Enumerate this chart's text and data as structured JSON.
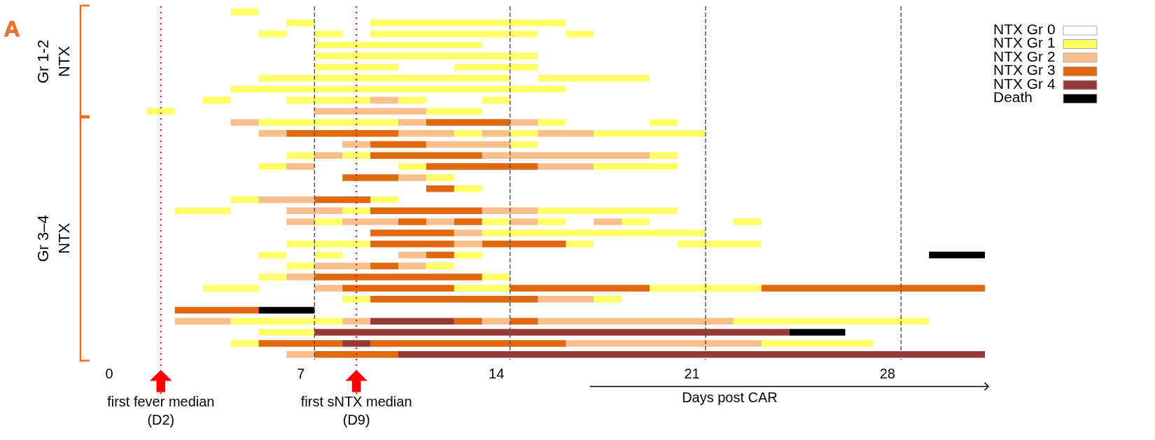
{
  "chart_data": {
    "type": "bar",
    "orientation": "horizontal",
    "xlabel": "Days post CAR",
    "xlim": [
      0,
      31.5
    ],
    "xticks": [
      0,
      7,
      14,
      21,
      28
    ],
    "grid": false,
    "legend": "top right",
    "tick_labels": "x",
    "annotations": [
      "A",
      "Gr 1-2\nNTX",
      "Gr 3–4\nNTX"
    ],
    "categories": [
      null,
      null,
      null,
      null,
      null,
      null,
      null,
      null,
      null,
      null,
      null,
      null,
      null,
      null,
      null,
      null,
      null,
      null,
      null,
      null,
      null,
      null,
      null,
      null,
      null,
      null,
      null,
      null,
      null,
      null,
      null,
      null
    ],
    "ref_lines": [
      {
        "axis": "x",
        "value": 2,
        "label": "first fever median\n(D2)",
        "color": "#ff0000",
        "line_style": "dotted"
      },
      {
        "axis": "x",
        "value": 9,
        "label": "first sNTX median\n(D9)",
        "color": "#ff0000",
        "line_style": "dotted"
      },
      {
        "axis": "x",
        "value": 7.5,
        "color": "#555555",
        "line_style": "dashed"
      },
      {
        "axis": "x",
        "value": 14.5,
        "color": "#555555",
        "line_style": "dashed"
      },
      {
        "axis": "x",
        "value": 21.5,
        "color": "#555555",
        "line_style": "dashed"
      },
      {
        "axis": "x",
        "value": 28.5,
        "color": "#555555",
        "line_style": "dashed"
      }
    ],
    "series": [
      {
        "name": "NTX Gr 0",
        "color": "#ffffff",
        "values": [
          null,
          null,
          null,
          null,
          null,
          null,
          null,
          null,
          null,
          null,
          null,
          null,
          null,
          null,
          null,
          null,
          null,
          null,
          null,
          null,
          null,
          null,
          null,
          null,
          null,
          null,
          null,
          null,
          null,
          null,
          null,
          null
        ]
      },
      {
        "name": "NTX Gr 1",
        "color": "#ffff66",
        "base": [
          4.5,
          6.5,
          5.5,
          7.5,
          7.5,
          7.5,
          5.5,
          4.5,
          3.5,
          1.5,
          5.5,
          12.5,
          14.5,
          6.5,
          5.5,
          11.5,
          12.5,
          4.5,
          2.5,
          7.5,
          13.5,
          6.5,
          5.5,
          6.5,
          5.5,
          3.5,
          8.5,
          null,
          4.5,
          5.5,
          4.5,
          null
        ],
        "values": [
          1,
          1,
          1,
          6,
          8,
          3,
          9,
          12,
          1,
          1,
          5,
          1,
          1,
          1,
          1,
          1,
          1,
          1,
          2,
          1,
          8,
          3,
          1,
          1,
          1,
          2,
          1,
          null,
          4,
          2,
          1,
          null
        ]
      },
      {
        "color": "#ffff66",
        "base": [
          null,
          9.5,
          7.5,
          null,
          null,
          12.5,
          15.5,
          null,
          6.5,
          11.5,
          15.5,
          14.5,
          null,
          8.5,
          10.5,
          null,
          null,
          9.5,
          8.5,
          13.5,
          null,
          16.5,
          7.5,
          11.5,
          13.5,
          12.5,
          17.5,
          null,
          22.5,
          null,
          23.5,
          null
        ],
        "values": [
          null,
          7,
          1,
          null,
          null,
          3,
          4,
          null,
          3,
          2,
          1,
          1,
          null,
          1,
          1,
          null,
          null,
          1,
          1,
          1,
          null,
          1,
          1,
          1,
          1,
          2,
          1,
          null,
          7,
          null,
          4,
          null
        ]
      },
      {
        "color": "#ffff66",
        "base": [
          null,
          null,
          9.5,
          null,
          null,
          null,
          null,
          null,
          10.5,
          null,
          19.5,
          17.5,
          null,
          19.5,
          17.5,
          null,
          null,
          null,
          15.5,
          15.5,
          null,
          20.5,
          12.5,
          null,
          null,
          19.5,
          null,
          null,
          null,
          null,
          null,
          null
        ],
        "values": [
          null,
          null,
          6,
          null,
          null,
          null,
          null,
          null,
          1,
          null,
          1,
          4,
          null,
          1,
          3,
          null,
          null,
          null,
          5,
          1,
          null,
          3,
          1,
          null,
          null,
          4,
          null,
          null,
          null,
          null,
          null,
          null
        ]
      },
      {
        "color": "#ffff66",
        "base": [
          null,
          null,
          16.5,
          null,
          null,
          null,
          null,
          null,
          13.5,
          null,
          null,
          null,
          null,
          null,
          null,
          null,
          null,
          null,
          null,
          18.5,
          null,
          null,
          null,
          null,
          null,
          null,
          null,
          null,
          null,
          null,
          null,
          null
        ],
        "values": [
          null,
          null,
          1,
          null,
          null,
          null,
          null,
          null,
          1,
          null,
          null,
          null,
          null,
          null,
          null,
          null,
          null,
          null,
          null,
          1,
          null,
          null,
          null,
          null,
          null,
          null,
          null,
          null,
          null,
          null,
          null,
          null
        ]
      },
      {
        "color": "#ffff66",
        "base": [
          null,
          null,
          null,
          null,
          null,
          null,
          null,
          null,
          null,
          null,
          null,
          null,
          null,
          null,
          null,
          null,
          null,
          null,
          null,
          22.5,
          null,
          null,
          null,
          null,
          null,
          null,
          null,
          null,
          null,
          null,
          null,
          null
        ],
        "values": [
          null,
          null,
          null,
          null,
          null,
          null,
          null,
          null,
          null,
          null,
          null,
          null,
          null,
          null,
          null,
          null,
          null,
          null,
          null,
          1,
          null,
          null,
          null,
          null,
          null,
          null,
          null,
          null,
          null,
          null,
          null,
          null
        ]
      },
      {
        "name": "NTX Gr 2",
        "color": "#f8bf8c",
        "base": [
          null,
          null,
          null,
          null,
          null,
          null,
          null,
          null,
          9.5,
          7.5,
          4.5,
          5.5,
          8.5,
          7.5,
          6.5,
          10.5,
          null,
          5.5,
          6.5,
          6.5,
          12.5,
          12.5,
          10.5,
          7.5,
          6.5,
          7.5,
          15.5,
          null,
          2.5,
          null,
          16.5,
          6.5
        ],
        "values": [
          null,
          null,
          null,
          null,
          null,
          null,
          null,
          null,
          1,
          4,
          1,
          1,
          1,
          1,
          1,
          1,
          null,
          2,
          2,
          1,
          1,
          1,
          1,
          2,
          1,
          1,
          2,
          null,
          2,
          null,
          7,
          1
        ]
      },
      {
        "color": "#f8bf8c",
        "base": [
          null,
          null,
          null,
          null,
          null,
          null,
          null,
          null,
          null,
          null,
          10.5,
          10.5,
          11.5,
          13.5,
          15.5,
          null,
          null,
          null,
          13.5,
          8.5,
          null,
          null,
          null,
          10.5,
          null,
          null,
          null,
          null,
          8.5,
          null,
          null,
          null
        ],
        "values": [
          null,
          null,
          null,
          null,
          null,
          null,
          null,
          null,
          null,
          null,
          1,
          2,
          3,
          6,
          2,
          null,
          null,
          null,
          2,
          2,
          null,
          null,
          null,
          1,
          null,
          null,
          null,
          null,
          1,
          null,
          null,
          null
        ]
      },
      {
        "color": "#f8bf8c",
        "base": [
          null,
          null,
          null,
          null,
          null,
          null,
          null,
          null,
          null,
          null,
          14.5,
          13.5,
          null,
          null,
          null,
          null,
          null,
          null,
          null,
          11.5,
          null,
          null,
          null,
          null,
          null,
          null,
          null,
          null,
          13.5,
          null,
          null,
          null
        ],
        "values": [
          null,
          null,
          null,
          null,
          null,
          null,
          null,
          null,
          null,
          null,
          1,
          1,
          null,
          null,
          null,
          null,
          null,
          null,
          null,
          1,
          null,
          null,
          null,
          null,
          null,
          null,
          null,
          null,
          1,
          null,
          null,
          null
        ]
      },
      {
        "color": "#f8bf8c",
        "base": [
          null,
          null,
          null,
          null,
          null,
          null,
          null,
          null,
          null,
          null,
          null,
          15.5,
          null,
          null,
          null,
          null,
          null,
          null,
          null,
          14.5,
          null,
          null,
          null,
          null,
          null,
          null,
          null,
          null,
          15.5,
          null,
          null,
          null
        ],
        "values": [
          null,
          null,
          null,
          null,
          null,
          null,
          null,
          null,
          null,
          null,
          null,
          2,
          null,
          null,
          null,
          null,
          null,
          null,
          null,
          1,
          null,
          null,
          null,
          null,
          null,
          null,
          null,
          null,
          7,
          null,
          null,
          null
        ]
      },
      {
        "color": "#f8bf8c",
        "base": [
          null,
          null,
          null,
          null,
          null,
          null,
          null,
          null,
          null,
          null,
          null,
          null,
          null,
          null,
          null,
          null,
          null,
          null,
          null,
          17.5,
          null,
          null,
          null,
          null,
          null,
          null,
          null,
          null,
          null,
          null,
          null,
          null
        ],
        "values": [
          null,
          null,
          null,
          null,
          null,
          null,
          null,
          null,
          null,
          null,
          null,
          null,
          null,
          null,
          null,
          null,
          null,
          null,
          null,
          1,
          null,
          null,
          null,
          null,
          null,
          null,
          null,
          null,
          null,
          null,
          null,
          null
        ]
      },
      {
        "name": "NTX Gr 3",
        "color": "#e0690f",
        "base": [
          null,
          null,
          null,
          null,
          null,
          null,
          null,
          null,
          null,
          null,
          11.5,
          6.5,
          9.5,
          9.5,
          11.5,
          8.5,
          11.5,
          7.5,
          9.5,
          10.5,
          9.5,
          9.5,
          11.5,
          9.5,
          7.5,
          8.5,
          9.5,
          2.5,
          12.5,
          null,
          5.5,
          7.5
        ],
        "values": [
          null,
          null,
          null,
          null,
          null,
          null,
          null,
          null,
          null,
          null,
          3,
          4,
          2,
          4,
          4,
          2,
          1,
          2,
          4,
          1,
          3,
          3,
          1,
          1,
          6,
          4,
          6,
          3,
          1,
          null,
          3,
          3
        ]
      },
      {
        "color": "#e0690f",
        "base": [
          null,
          null,
          null,
          null,
          null,
          null,
          null,
          null,
          null,
          null,
          null,
          null,
          null,
          null,
          null,
          null,
          null,
          null,
          null,
          12.5,
          null,
          13.5,
          null,
          null,
          null,
          14.5,
          null,
          null,
          14.5,
          null,
          9.5,
          null
        ],
        "values": [
          null,
          null,
          null,
          null,
          null,
          null,
          null,
          null,
          null,
          null,
          null,
          null,
          null,
          null,
          null,
          null,
          null,
          null,
          null,
          1,
          null,
          3,
          null,
          null,
          null,
          5,
          null,
          null,
          1,
          null,
          7,
          null
        ]
      },
      {
        "color": "#e0690f",
        "base": [
          null,
          null,
          null,
          null,
          null,
          null,
          null,
          null,
          null,
          null,
          null,
          null,
          null,
          null,
          null,
          null,
          null,
          null,
          null,
          null,
          null,
          null,
          null,
          null,
          null,
          23.5,
          null,
          null,
          null,
          null,
          null,
          null
        ],
        "values": [
          null,
          null,
          null,
          null,
          null,
          null,
          null,
          null,
          null,
          null,
          null,
          null,
          null,
          null,
          null,
          null,
          null,
          null,
          null,
          null,
          null,
          null,
          null,
          null,
          null,
          8,
          null,
          null,
          null,
          null,
          null,
          null
        ]
      },
      {
        "name": "NTX Gr 4",
        "color": "#953a36",
        "base": [
          null,
          null,
          null,
          null,
          null,
          null,
          null,
          null,
          null,
          null,
          null,
          null,
          null,
          null,
          null,
          null,
          null,
          null,
          null,
          null,
          null,
          null,
          null,
          null,
          null,
          null,
          null,
          null,
          9.5,
          7.5,
          8.5,
          10.5
        ],
        "values": [
          null,
          null,
          null,
          null,
          null,
          null,
          null,
          null,
          null,
          null,
          null,
          null,
          null,
          null,
          null,
          null,
          null,
          null,
          null,
          null,
          null,
          null,
          null,
          null,
          null,
          null,
          null,
          null,
          3,
          17,
          1,
          21
        ]
      },
      {
        "name": "Death",
        "color": "#000000",
        "base": [
          null,
          null,
          null,
          null,
          null,
          null,
          null,
          null,
          null,
          null,
          null,
          null,
          null,
          null,
          null,
          null,
          null,
          null,
          null,
          null,
          null,
          null,
          29.5,
          null,
          null,
          null,
          null,
          5.5,
          null,
          24.5,
          null,
          null
        ],
        "values": [
          null,
          null,
          null,
          null,
          null,
          null,
          null,
          null,
          null,
          null,
          null,
          null,
          null,
          null,
          null,
          null,
          null,
          null,
          null,
          null,
          null,
          null,
          2,
          null,
          null,
          null,
          null,
          2,
          null,
          2,
          null,
          null
        ]
      }
    ]
  }
}
